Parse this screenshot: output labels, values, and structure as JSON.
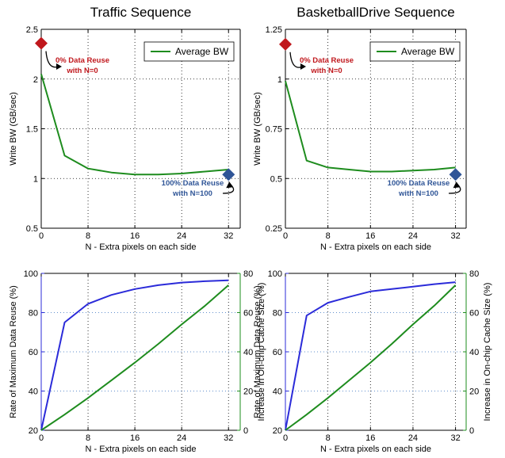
{
  "chart_data": [
    {
      "type": "line",
      "title": "Traffic Sequence",
      "xlabel": "N - Extra pixels on each side",
      "ylabel": "Write BW (GB/sec)",
      "xlim": [
        0,
        34
      ],
      "ylim": [
        0.5,
        2.5
      ],
      "xticks": [
        "0",
        "8",
        "16",
        "24",
        "32"
      ],
      "xtick_values": [
        0,
        8,
        16,
        24,
        32
      ],
      "yticks": [
        "0.5",
        "1",
        "1.5",
        "2",
        "2.5"
      ],
      "ytick_values": [
        0.5,
        1,
        1.5,
        2,
        2.5
      ],
      "grid": "dotted",
      "legend": "top-right",
      "series": [
        {
          "name": "Average BW",
          "color": "#1e8c1e",
          "x": [
            0,
            4,
            8,
            12,
            16,
            20,
            24,
            28,
            32
          ],
          "y": [
            2.05,
            1.23,
            1.1,
            1.06,
            1.04,
            1.04,
            1.05,
            1.07,
            1.09
          ]
        }
      ],
      "markers": [
        {
          "x": 0,
          "y": 2.36,
          "color": "#c0171c",
          "shape": "diamond"
        },
        {
          "x": 32,
          "y": 1.04,
          "color": "#2f5597",
          "shape": "diamond"
        }
      ],
      "annotations": [
        {
          "lines": [
            "0% Data Reuse",
            "with N=0"
          ],
          "color": "#c0171c"
        },
        {
          "lines": [
            "100% Data Reuse",
            "with N=100"
          ],
          "color": "#2f5597"
        }
      ]
    },
    {
      "type": "line",
      "title": "BasketballDrive Sequence",
      "xlabel": "N - Extra pixels on each side",
      "ylabel": "Write BW (GB/sec)",
      "xlim": [
        0,
        34
      ],
      "ylim": [
        0.25,
        1.25
      ],
      "xticks": [
        "0",
        "8",
        "16",
        "24",
        "32"
      ],
      "xtick_values": [
        0,
        8,
        16,
        24,
        32
      ],
      "yticks": [
        "0.25",
        "0.5",
        "0.75",
        "1",
        "1.25"
      ],
      "ytick_values": [
        0.25,
        0.5,
        0.75,
        1,
        1.25
      ],
      "grid": "dotted",
      "legend": "top-right",
      "series": [
        {
          "name": "Average BW",
          "color": "#1e8c1e",
          "x": [
            0,
            4,
            8,
            12,
            16,
            20,
            24,
            28,
            32
          ],
          "y": [
            0.99,
            0.59,
            0.555,
            0.545,
            0.535,
            0.535,
            0.54,
            0.545,
            0.555
          ]
        }
      ],
      "markers": [
        {
          "x": 0,
          "y": 1.175,
          "color": "#c0171c",
          "shape": "diamond"
        },
        {
          "x": 32,
          "y": 0.52,
          "color": "#2f5597",
          "shape": "diamond"
        }
      ],
      "annotations": [
        {
          "lines": [
            "0% Data Reuse",
            "with N=0"
          ],
          "color": "#c0171c"
        },
        {
          "lines": [
            "100% Data Reuse",
            "with N=100"
          ],
          "color": "#2f5597"
        }
      ]
    },
    {
      "type": "line",
      "title": "",
      "xlabel": "N - Extra pixels on each side",
      "ylabel": "Rate of Maximum Data Reuse (%)",
      "y2label": "Increase in On-chip Cache Size (%)",
      "xlim": [
        0,
        34
      ],
      "ylim": [
        20,
        100
      ],
      "y2lim": [
        0,
        80
      ],
      "xticks": [
        "0",
        "8",
        "16",
        "24",
        "32"
      ],
      "xtick_values": [
        0,
        8,
        16,
        24,
        32
      ],
      "yticks": [
        "20",
        "40",
        "60",
        "80",
        "100"
      ],
      "ytick_values": [
        20,
        40,
        60,
        80,
        100
      ],
      "y2ticks": [
        "0",
        "20",
        "40",
        "60",
        "80"
      ],
      "y2tick_values": [
        0,
        20,
        40,
        60,
        80
      ],
      "grid": "dotted",
      "series": [
        {
          "axis": "left",
          "color": "#2b2bd9",
          "x": [
            0,
            4,
            8,
            12,
            16,
            20,
            24,
            28,
            32
          ],
          "y": [
            20,
            75,
            84.5,
            89,
            92,
            94,
            95.3,
            96,
            96.5
          ]
        },
        {
          "axis": "right",
          "color": "#1e8c1e",
          "x": [
            0,
            4,
            8,
            12,
            16,
            20,
            24,
            28,
            32
          ],
          "y": [
            0,
            8,
            16.5,
            25.5,
            34.5,
            44,
            54,
            63.5,
            74
          ]
        }
      ]
    },
    {
      "type": "line",
      "title": "",
      "xlabel": "N - Extra pixels on each side",
      "ylabel": "Rate of Maximum Data Reuse (%)",
      "y2label": "Increase in On-chip Cache Size (%)",
      "xlim": [
        0,
        34
      ],
      "ylim": [
        20,
        100
      ],
      "y2lim": [
        0,
        80
      ],
      "xticks": [
        "0",
        "8",
        "16",
        "24",
        "32"
      ],
      "xtick_values": [
        0,
        8,
        16,
        24,
        32
      ],
      "yticks": [
        "20",
        "40",
        "60",
        "80",
        "100"
      ],
      "ytick_values": [
        20,
        40,
        60,
        80,
        100
      ],
      "y2ticks": [
        "0",
        "20",
        "40",
        "60",
        "80"
      ],
      "y2tick_values": [
        0,
        20,
        40,
        60,
        80
      ],
      "grid": "dotted",
      "series": [
        {
          "axis": "left",
          "color": "#2b2bd9",
          "x": [
            0,
            4,
            8,
            12,
            16,
            20,
            24,
            28,
            32
          ],
          "y": [
            20,
            78.5,
            85,
            88,
            90.8,
            92,
            93.2,
            94.5,
            95.5
          ]
        },
        {
          "axis": "right",
          "color": "#1e8c1e",
          "x": [
            0,
            4,
            8,
            12,
            16,
            20,
            24,
            28,
            32
          ],
          "y": [
            0,
            8,
            16.5,
            25.5,
            34.5,
            44,
            54,
            63.5,
            74
          ]
        }
      ]
    }
  ]
}
